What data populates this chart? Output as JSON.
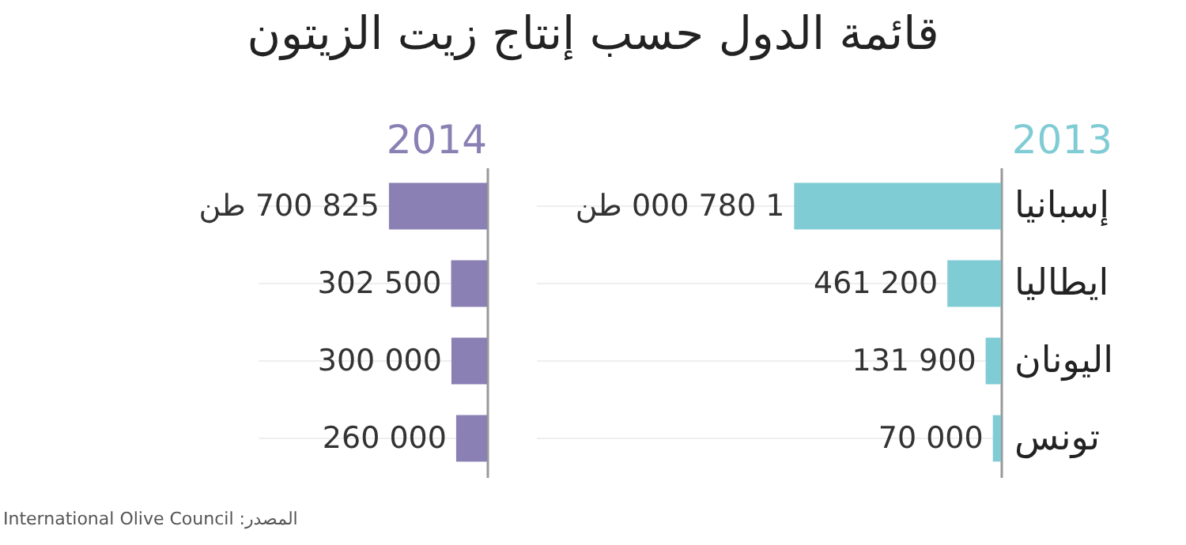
{
  "chart_data": [
    {
      "type": "bar",
      "orientation": "horizontal",
      "title": "قائمة الدول حسب إنتاج زيت الزيتون",
      "subtitle": "2013",
      "categories": [
        "إسبانيا",
        "ايطاليا",
        "اليونان",
        "تونس"
      ],
      "xlim": [
        4000000,
        0
      ],
      "grid": "y",
      "series": [
        {
          "color": "#80ccd5",
          "values": [
            1780000,
            461200,
            131900,
            70000
          ],
          "value_labels": [
            "1 780 000 طن",
            "461 200",
            "131 900",
            "70 000"
          ]
        }
      ],
      "annotations": [
        "المصدر: International Olive Council"
      ]
    },
    {
      "type": "bar",
      "orientation": "horizontal",
      "title": "2014",
      "categories": [
        null,
        null,
        null,
        null
      ],
      "xlim": [
        1930000,
        0
      ],
      "grid": "y",
      "tick_labels": false,
      "series": [
        {
          "color": "#8a80b4",
          "values": [
            825700,
            302500,
            300000,
            260000
          ],
          "value_labels": [
            "825 700 طن",
            "302 500",
            "300 000",
            "260 000"
          ]
        }
      ]
    }
  ]
}
